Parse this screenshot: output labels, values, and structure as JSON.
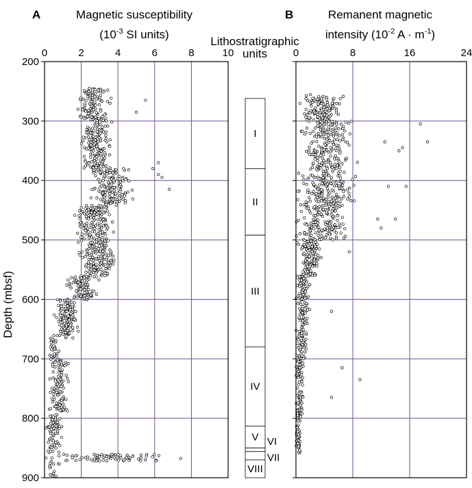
{
  "chart_data": [
    {
      "type": "scatter",
      "panel_label": "A",
      "title_line1": "Magnetic susceptibility",
      "title_line2_pre": "(10",
      "title_line2_sup": "-3",
      "title_line2_post": " SI units)",
      "ylabel": "Depth (mbsf)",
      "xlim": [
        0,
        10
      ],
      "ylim": [
        200,
        900
      ],
      "x_ticks": [
        "0",
        "2",
        "4",
        "6",
        "8",
        "10"
      ],
      "y_ticks": [
        "200",
        "300",
        "400",
        "500",
        "600",
        "700",
        "800",
        "900"
      ],
      "grid": true,
      "profile": [
        {
          "d_from": 245,
          "d_to": 300,
          "center": 2.7,
          "spread": 1.1,
          "n": 130
        },
        {
          "d_from": 300,
          "d_to": 380,
          "center": 2.8,
          "spread": 1.0,
          "n": 170
        },
        {
          "d_from": 380,
          "d_to": 440,
          "center": 3.6,
          "spread": 1.5,
          "n": 150
        },
        {
          "d_from": 440,
          "d_to": 500,
          "center": 2.7,
          "spread": 1.3,
          "n": 150
        },
        {
          "d_from": 500,
          "d_to": 560,
          "center": 2.9,
          "spread": 1.3,
          "n": 150
        },
        {
          "d_from": 560,
          "d_to": 600,
          "center": 2.0,
          "spread": 1.1,
          "n": 100
        },
        {
          "d_from": 600,
          "d_to": 665,
          "center": 1.2,
          "spread": 0.8,
          "n": 140
        },
        {
          "d_from": 665,
          "d_to": 700,
          "center": 0.5,
          "spread": 0.4,
          "n": 30
        },
        {
          "d_from": 700,
          "d_to": 790,
          "center": 0.8,
          "spread": 0.7,
          "n": 110
        },
        {
          "d_from": 790,
          "d_to": 860,
          "center": 0.5,
          "spread": 0.5,
          "n": 70
        },
        {
          "d_from": 860,
          "d_to": 872,
          "center": 3.5,
          "spread": 4.5,
          "n": 80
        },
        {
          "d_from": 872,
          "d_to": 900,
          "center": 0.5,
          "spread": 0.4,
          "n": 15
        }
      ],
      "outliers": [
        [
          6.2,
          370
        ],
        [
          6.2,
          390
        ],
        [
          6.4,
          395
        ],
        [
          6.8,
          415
        ],
        [
          5.9,
          380
        ],
        [
          5.0,
          285
        ],
        [
          5.5,
          265
        ]
      ]
    },
    {
      "type": "scatter",
      "panel_label": "B",
      "title_line1": "Remanent magnetic",
      "title_line2_pre": "intensity  (10",
      "title_line2_sup": "-2",
      "title_line2_post": " A · m",
      "title_line2_sup2": "-1",
      "title_line2_end": ")",
      "xlim": [
        0,
        24
      ],
      "ylim": [
        200,
        900
      ],
      "x_ticks": [
        "0",
        "8",
        "16",
        "24"
      ],
      "y_ticks": [
        "200",
        "300",
        "400",
        "500",
        "600",
        "700",
        "800",
        "900"
      ],
      "grid": true,
      "profile": [
        {
          "d_from": 255,
          "d_to": 300,
          "center": 3.5,
          "spread": 3.5,
          "n": 120
        },
        {
          "d_from": 300,
          "d_to": 380,
          "center": 4.5,
          "spread": 4.5,
          "n": 200
        },
        {
          "d_from": 380,
          "d_to": 440,
          "center": 4.5,
          "spread": 5.0,
          "n": 160
        },
        {
          "d_from": 440,
          "d_to": 500,
          "center": 3.5,
          "spread": 4.5,
          "n": 160
        },
        {
          "d_from": 500,
          "d_to": 560,
          "center": 2.0,
          "spread": 2.0,
          "n": 120
        },
        {
          "d_from": 560,
          "d_to": 620,
          "center": 1.0,
          "spread": 1.2,
          "n": 80
        },
        {
          "d_from": 620,
          "d_to": 700,
          "center": 0.8,
          "spread": 1.0,
          "n": 80
        },
        {
          "d_from": 700,
          "d_to": 800,
          "center": 0.5,
          "spread": 0.7,
          "n": 90
        },
        {
          "d_from": 800,
          "d_to": 860,
          "center": 0.3,
          "spread": 0.4,
          "n": 40
        }
      ],
      "outliers": [
        [
          17.5,
          305
        ],
        [
          18.5,
          335
        ],
        [
          15.0,
          345
        ],
        [
          14.5,
          350
        ],
        [
          12.5,
          335
        ],
        [
          13.0,
          410
        ],
        [
          15.5,
          410
        ],
        [
          14.0,
          465
        ],
        [
          11.5,
          465
        ],
        [
          12.0,
          480
        ],
        [
          9.0,
          735
        ],
        [
          6.5,
          715
        ],
        [
          5.0,
          765
        ],
        [
          7.5,
          520
        ],
        [
          5.0,
          620
        ]
      ]
    }
  ],
  "lithostratigraphy": {
    "title_line1": "Lithostratigraphic",
    "title_line2": "units",
    "units": [
      {
        "name": "I",
        "top": 262,
        "bottom": 380
      },
      {
        "name": "II",
        "top": 380,
        "bottom": 492
      },
      {
        "name": "III",
        "top": 492,
        "bottom": 680
      },
      {
        "name": "IV",
        "top": 680,
        "bottom": 813
      },
      {
        "name": "V",
        "top": 813,
        "bottom": 850
      },
      {
        "name": "VI",
        "top": 850,
        "bottom": 856
      },
      {
        "name": "VII",
        "top": 856,
        "bottom": 870
      },
      {
        "name": "VIII",
        "top": 870,
        "bottom": 900
      }
    ]
  }
}
